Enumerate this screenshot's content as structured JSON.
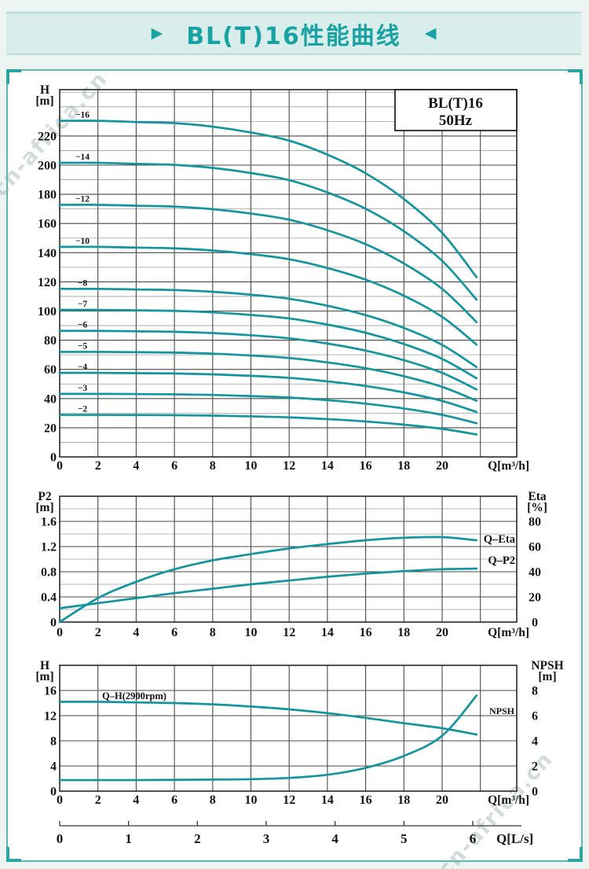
{
  "page": {
    "watermark": "cn-africa.cn",
    "header": {
      "left_icon": "▶",
      "title": "BL(T)16性能曲线",
      "right_icon": "◀"
    }
  },
  "colors": {
    "curve": "#12959e",
    "header_text": "#18a2a3",
    "header_bg": "#d9edeb",
    "panel_border": "#5ab8b1",
    "grid_minor": "#9aa0a0",
    "grid_major": "#4a4a4a",
    "frame": "#1a1a1a"
  },
  "chart_data": [
    {
      "id": "head-curves",
      "type": "line",
      "legend_box": [
        "BL(T)16",
        "50Hz"
      ],
      "ylabel_lines": [
        "H",
        "[m]"
      ],
      "xlabel": "Q[m³/h]",
      "xlim": [
        0,
        23.9
      ],
      "ylim": [
        0,
        252
      ],
      "xticks": [
        0,
        2,
        4,
        6,
        8,
        10,
        12,
        14,
        16,
        18,
        20
      ],
      "yticks": [
        0,
        20,
        40,
        60,
        80,
        100,
        120,
        140,
        160,
        180,
        200,
        220
      ],
      "y_minor_step": 10,
      "x_grid_step": 2,
      "grid": true,
      "x": [
        0,
        2,
        4,
        6,
        8,
        10,
        12,
        14,
        16,
        18,
        20,
        21.8
      ],
      "series": [
        {
          "name": "−2",
          "stages": 2,
          "values": [
            28.8,
            28.8,
            28.7,
            28.6,
            28.3,
            27.8,
            27.1,
            25.9,
            24.3,
            22.1,
            19.2,
            15.4
          ]
        },
        {
          "name": "−3",
          "stages": 3,
          "values": [
            43.2,
            43.2,
            43.1,
            42.9,
            42.5,
            41.7,
            40.7,
            38.9,
            36.5,
            33.2,
            28.8,
            23.1
          ]
        },
        {
          "name": "−4",
          "stages": 4,
          "values": [
            57.6,
            57.6,
            57.4,
            57.2,
            56.6,
            55.6,
            54.2,
            51.8,
            48.6,
            44.2,
            38.4,
            30.8
          ]
        },
        {
          "name": "−5",
          "stages": 5,
          "values": [
            72.0,
            72.0,
            71.8,
            71.5,
            70.8,
            69.5,
            67.8,
            64.8,
            60.8,
            55.3,
            48.0,
            38.5
          ]
        },
        {
          "name": "−6",
          "stages": 6,
          "values": [
            86.4,
            86.4,
            86.1,
            85.8,
            84.9,
            83.4,
            81.3,
            77.7,
            72.9,
            66.3,
            57.6,
            46.2
          ]
        },
        {
          "name": "−7",
          "stages": 7,
          "values": [
            100.8,
            100.8,
            100.5,
            100.1,
            99.1,
            97.3,
            94.9,
            90.7,
            85.1,
            77.4,
            67.2,
            53.9
          ]
        },
        {
          "name": "−8",
          "stages": 8,
          "values": [
            115.2,
            115.2,
            114.8,
            114.4,
            113.2,
            111.2,
            108.4,
            103.6,
            97.2,
            88.4,
            76.8,
            61.6
          ]
        },
        {
          "name": "−10",
          "stages": 10,
          "values": [
            144.0,
            144.0,
            143.5,
            143.0,
            141.5,
            139.0,
            135.5,
            129.5,
            121.5,
            110.5,
            96.0,
            77.0
          ]
        },
        {
          "name": "−12",
          "stages": 12,
          "values": [
            172.8,
            172.8,
            172.2,
            171.6,
            169.8,
            166.8,
            162.6,
            155.4,
            145.8,
            132.6,
            115.2,
            92.4
          ]
        },
        {
          "name": "−14",
          "stages": 14,
          "values": [
            201.6,
            201.6,
            200.9,
            200.2,
            198.1,
            194.6,
            189.7,
            181.3,
            170.1,
            154.7,
            134.4,
            107.8
          ]
        },
        {
          "name": "−16",
          "stages": 16,
          "values": [
            230.4,
            230.4,
            229.6,
            228.8,
            226.4,
            222.4,
            216.8,
            207.2,
            194.4,
            176.8,
            153.6,
            123.2
          ]
        }
      ]
    },
    {
      "id": "power-efficiency",
      "type": "line",
      "ylabel_left_lines": [
        "P2",
        "[m]"
      ],
      "ylabel_right_lines": [
        "Eta",
        "[%]"
      ],
      "xlabel": "Q[m³/h]",
      "xlim": [
        0,
        23.9
      ],
      "ylim_left": [
        0,
        2.0
      ],
      "ylim_right": [
        0,
        100
      ],
      "xticks": [
        0,
        2,
        4,
        6,
        8,
        10,
        12,
        14,
        16,
        18,
        20
      ],
      "yticks_left": [
        0,
        0.4,
        0.8,
        1.2,
        1.6
      ],
      "yticks_right": [
        0,
        20,
        40,
        60,
        80
      ],
      "y_minor_left": [
        0.2,
        0.6,
        1.0,
        1.4,
        1.8
      ],
      "x_grid_step": 2,
      "grid": true,
      "x": [
        0,
        2,
        4,
        6,
        8,
        10,
        12,
        14,
        16,
        18,
        20,
        21.8
      ],
      "series": [
        {
          "name": "Q–Eta",
          "axis": "right",
          "values": [
            0,
            19,
            32,
            42,
            49,
            54,
            58.5,
            62,
            65,
            67,
            67.5,
            65
          ]
        },
        {
          "name": "Q–P2",
          "axis": "left",
          "values": [
            0.22,
            0.3,
            0.38,
            0.46,
            0.53,
            0.6,
            0.66,
            0.72,
            0.77,
            0.81,
            0.84,
            0.85
          ]
        }
      ]
    },
    {
      "id": "single-stage",
      "type": "line",
      "ylabel_left_lines": [
        "H",
        "[m]"
      ],
      "ylabel_right_lines": [
        "NPSH",
        "[m]"
      ],
      "xlabel": "Q[m³/h]",
      "xlim": [
        0,
        23.9
      ],
      "ylim_left": [
        0,
        20
      ],
      "ylim_right": [
        0,
        10
      ],
      "xticks": [
        0,
        2,
        4,
        6,
        8,
        10,
        12,
        14,
        16,
        18,
        20
      ],
      "yticks_left": [
        0,
        4,
        8,
        12,
        16
      ],
      "yticks_right": [
        0,
        2,
        4,
        6,
        8
      ],
      "x_grid_step": 2,
      "grid": true,
      "x": [
        0,
        2,
        4,
        6,
        8,
        10,
        12,
        14,
        16,
        18,
        20,
        21.8
      ],
      "series": [
        {
          "name": "Q–H(2900rpm)",
          "axis": "left",
          "values": [
            14.2,
            14.2,
            14.1,
            14.0,
            13.8,
            13.45,
            13.0,
            12.4,
            11.65,
            10.8,
            10.0,
            9.0
          ]
        },
        {
          "name": "NPSH",
          "axis": "right",
          "values": [
            0.88,
            0.88,
            0.88,
            0.9,
            0.92,
            0.95,
            1.05,
            1.3,
            1.85,
            2.8,
            4.4,
            7.6
          ]
        }
      ]
    },
    {
      "id": "flow-lps-axis",
      "type": "table",
      "label": "Q[L/s]",
      "ticks": [
        0,
        1,
        2,
        3,
        4,
        5,
        6
      ],
      "m3h_per_lps": 3.6
    }
  ]
}
